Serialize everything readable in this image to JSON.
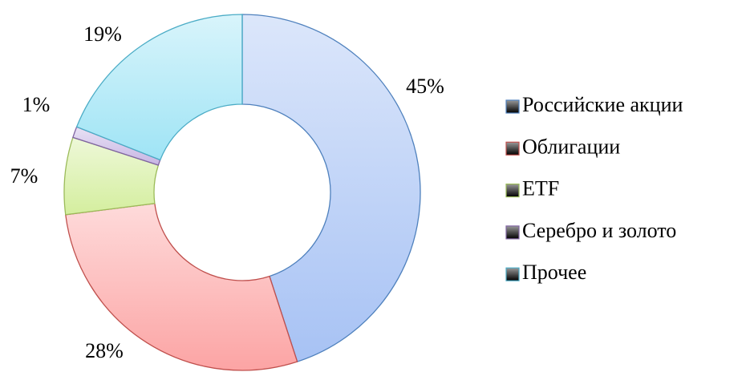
{
  "chart_data": {
    "type": "donut",
    "categories": [
      "Российские акции",
      "Облигации",
      "ETF",
      "Серебро и золото",
      "Прочее"
    ],
    "values": [
      45,
      28,
      7,
      1,
      19
    ],
    "value_labels": [
      "45%",
      "28%",
      "7%",
      "1%",
      "19%"
    ],
    "colors": [
      "#a7c2f4",
      "#fca4a4",
      "#d4ee9e",
      "#c7b5e4",
      "#9fe4f5"
    ],
    "edge_colors": [
      "#4f81bd",
      "#c0504d",
      "#9bbb59",
      "#8064a2",
      "#4bacc6"
    ],
    "legend": "right"
  }
}
